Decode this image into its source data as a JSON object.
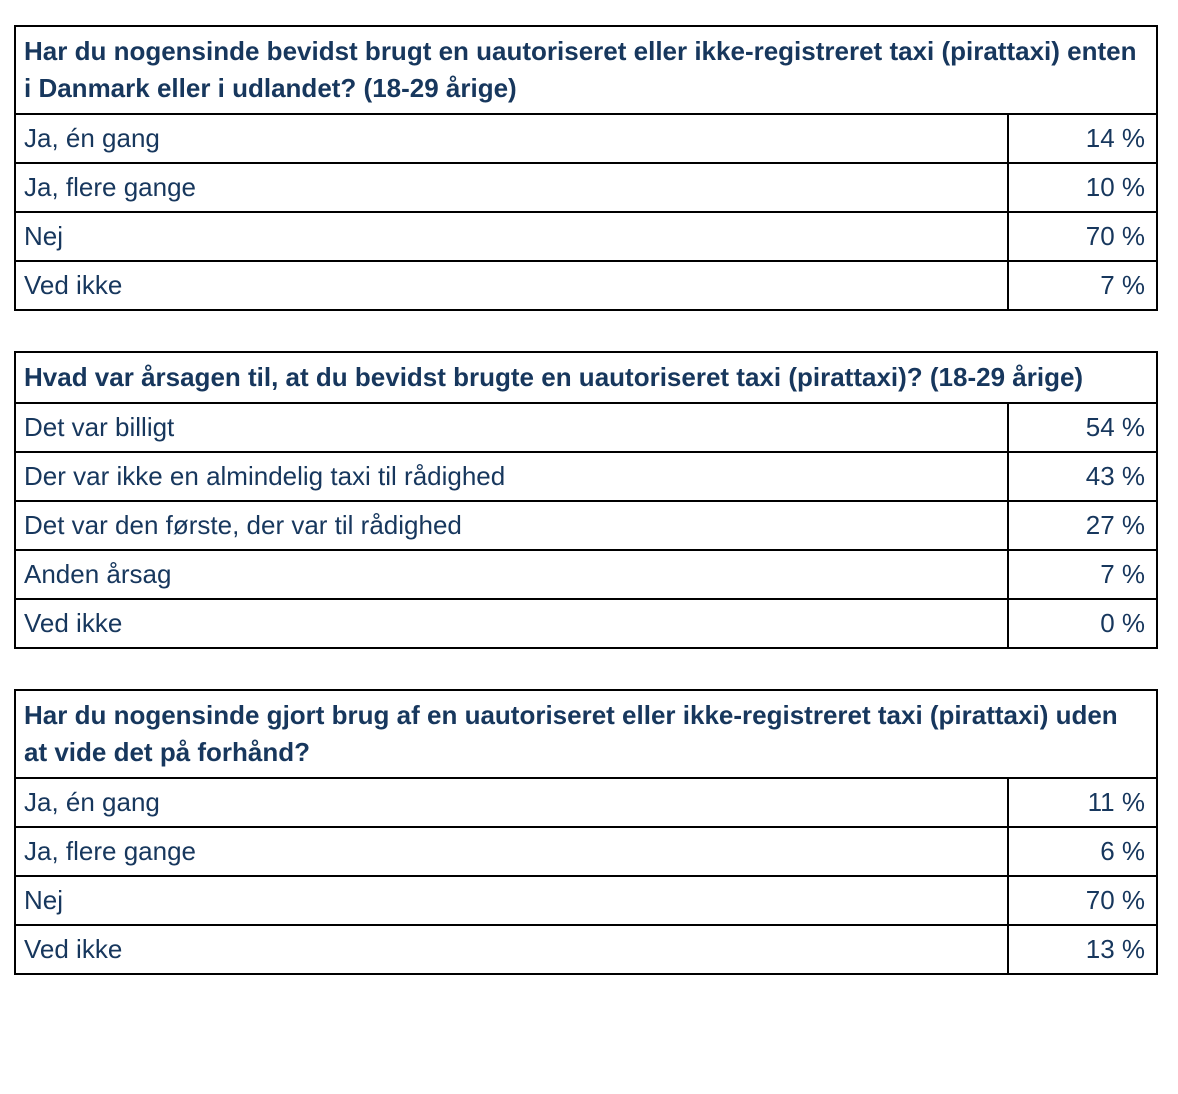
{
  "page": {
    "background_color": "#ffffff",
    "text_color": "#17375D",
    "border_color": "#000000"
  },
  "tables": [
    {
      "title": "Har du nogensinde bevidst brugt en uautoriseret eller ikke-registreret taxi (pirattaxi) enten i Danmark eller i udlandet? (18-29 årige)",
      "rows": [
        {
          "label": "Ja, én gang",
          "value": "14 %"
        },
        {
          "label": "Ja, flere gange",
          "value": "10 %"
        },
        {
          "label": "Nej",
          "value": "70 %"
        },
        {
          "label": "Ved ikke",
          "value": "7 %"
        }
      ]
    },
    {
      "title": "Hvad var årsagen til, at du bevidst brugte en uautoriseret taxi (pirattaxi)? (18-29 årige)",
      "rows": [
        {
          "label": "Det var billigt",
          "value": "54 %"
        },
        {
          "label": "Der var ikke en almindelig taxi til rådighed",
          "value": "43 %"
        },
        {
          "label": "Det var den første, der var til rådighed",
          "value": "27 %"
        },
        {
          "label": "Anden årsag",
          "value": "7 %"
        },
        {
          "label": "Ved ikke",
          "value": "0 %"
        }
      ]
    },
    {
      "title": "Har du nogensinde gjort brug af en uautoriseret eller ikke-registreret taxi (pirattaxi) uden at vide det på forhånd?",
      "rows": [
        {
          "label": "Ja, én gang",
          "value": "11 %"
        },
        {
          "label": "Ja, flere gange",
          "value": "6 %"
        },
        {
          "label": "Nej",
          "value": "70 %"
        },
        {
          "label": "Ved ikke",
          "value": "13 %"
        }
      ]
    }
  ]
}
